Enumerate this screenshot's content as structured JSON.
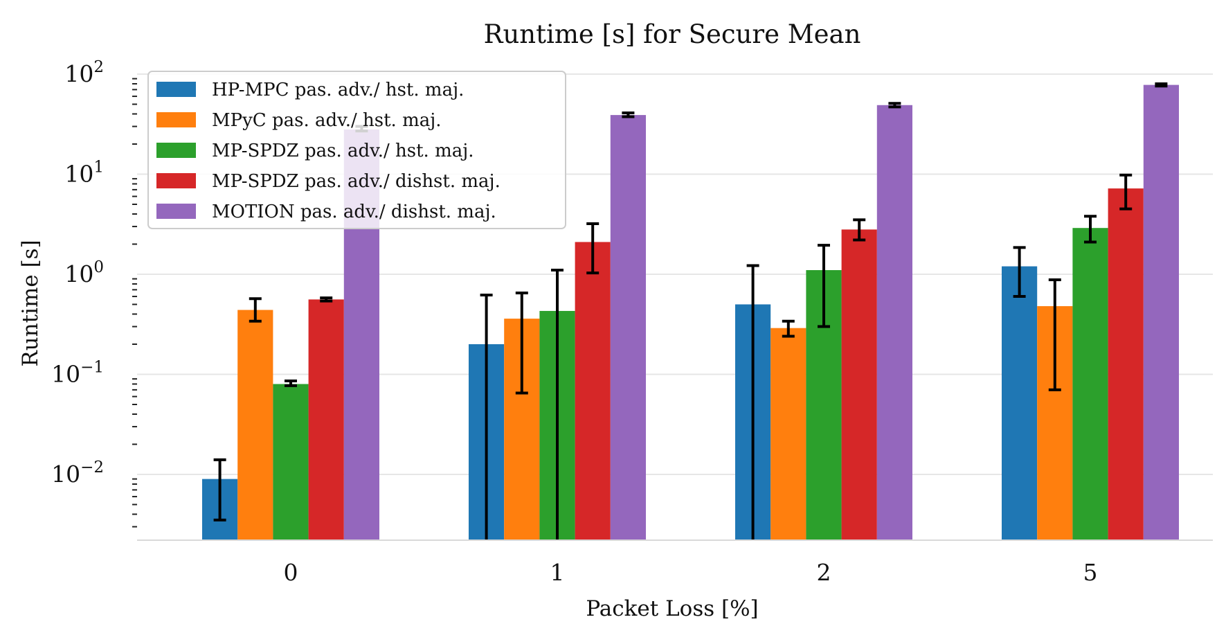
{
  "chart_data": {
    "type": "bar",
    "title": "Runtime [s] for Secure Mean",
    "xlabel": "Packet Loss [%]",
    "ylabel": "Runtime [s]",
    "yscale": "log",
    "ylim": [
      0.002,
      150
    ],
    "categories": [
      "0",
      "1",
      "2",
      "5"
    ],
    "yticks": [
      {
        "base": "10",
        "exp": "2",
        "value": 100
      },
      {
        "base": "10",
        "exp": "1",
        "value": 10
      },
      {
        "base": "10",
        "exp": "0",
        "value": 1
      },
      {
        "base": "10",
        "exp": "−1",
        "value": 0.1
      },
      {
        "base": "10",
        "exp": "−2",
        "value": 0.01
      }
    ],
    "legend_position": "top-left",
    "series": [
      {
        "name": "HP-MPC pas. adv./ hst. maj.",
        "color": "#1f77b4",
        "values": [
          0.009,
          0.2,
          0.5,
          1.2
        ],
        "err_low": [
          0.0035,
          0.001,
          0.001,
          0.6
        ],
        "err_high": [
          0.014,
          0.62,
          1.22,
          1.85
        ]
      },
      {
        "name": "MPyC pas. adv./ hst. maj.",
        "color": "#ff7f0e",
        "values": [
          0.44,
          0.36,
          0.29,
          0.48
        ],
        "err_low": [
          0.34,
          0.065,
          0.24,
          0.07
        ],
        "err_high": [
          0.57,
          0.65,
          0.34,
          0.88
        ]
      },
      {
        "name": "MP-SPDZ pas. adv./ hst. maj.",
        "color": "#2ca02c",
        "values": [
          0.08,
          0.43,
          1.1,
          2.9
        ],
        "err_low": [
          0.077,
          0.001,
          0.3,
          2.1
        ],
        "err_high": [
          0.086,
          1.1,
          1.95,
          3.8
        ]
      },
      {
        "name": "MP-SPDZ pas. adv./ dishst. maj.",
        "color": "#d62728",
        "values": [
          0.56,
          2.1,
          2.8,
          7.2
        ],
        "err_low": [
          0.54,
          1.03,
          2.2,
          4.5
        ],
        "err_high": [
          0.58,
          3.2,
          3.5,
          9.8
        ]
      },
      {
        "name": "MOTION pas. adv./ dishst. maj.",
        "color": "#9467bd",
        "values": [
          28,
          39,
          49,
          78
        ],
        "err_low": [
          27,
          37.5,
          47,
          76
        ],
        "err_high": [
          30,
          41,
          51,
          80
        ]
      }
    ]
  }
}
